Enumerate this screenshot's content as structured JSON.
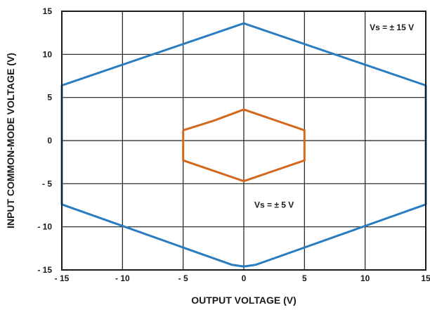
{
  "chart_data": {
    "type": "line",
    "title": "",
    "xlabel": "OUTPUT VOLTAGE (V)",
    "ylabel": "INPUT COMMON-MODE VOLTAGE (V)",
    "xlim": [
      -15,
      15
    ],
    "ylim": [
      -15,
      15
    ],
    "grid": true,
    "x_ticks": [
      -15,
      -10,
      -5,
      0,
      5,
      10,
      15
    ],
    "y_ticks": [
      -15,
      -10,
      -5,
      0,
      5,
      10,
      15
    ],
    "x_tick_labels": [
      "- 15",
      "- 10",
      "- 5",
      "0",
      "5",
      "10",
      "15"
    ],
    "y_tick_labels": [
      "- 15",
      "- 10",
      "- 5",
      "0",
      "5",
      "10",
      "15"
    ],
    "series": [
      {
        "color": "#2a7cc0",
        "points": [
          [
            -15.0,
            6.4
          ],
          [
            0.0,
            13.6
          ],
          [
            15.0,
            6.4
          ],
          [
            15.0,
            -7.4
          ],
          [
            1.0,
            -14.4
          ],
          [
            0.0,
            -14.6
          ],
          [
            -1.0,
            -14.4
          ],
          [
            -15.0,
            -7.4
          ],
          [
            -15.0,
            6.4
          ]
        ]
      },
      {
        "color": "#d2691e",
        "points": [
          [
            -5.0,
            1.2
          ],
          [
            -2.5,
            2.3
          ],
          [
            0.0,
            3.6
          ],
          [
            5.0,
            1.2
          ],
          [
            5.0,
            -2.3
          ],
          [
            0.0,
            -4.7
          ],
          [
            -5.0,
            -2.3
          ],
          [
            -5.0,
            1.2
          ]
        ]
      }
    ],
    "annotations": [
      {
        "text": "Vs = ± 15 V",
        "x": 12.2,
        "y": 12.8
      },
      {
        "text": "Vs = ± 5 V",
        "x": 2.5,
        "y": -7.8
      }
    ]
  }
}
